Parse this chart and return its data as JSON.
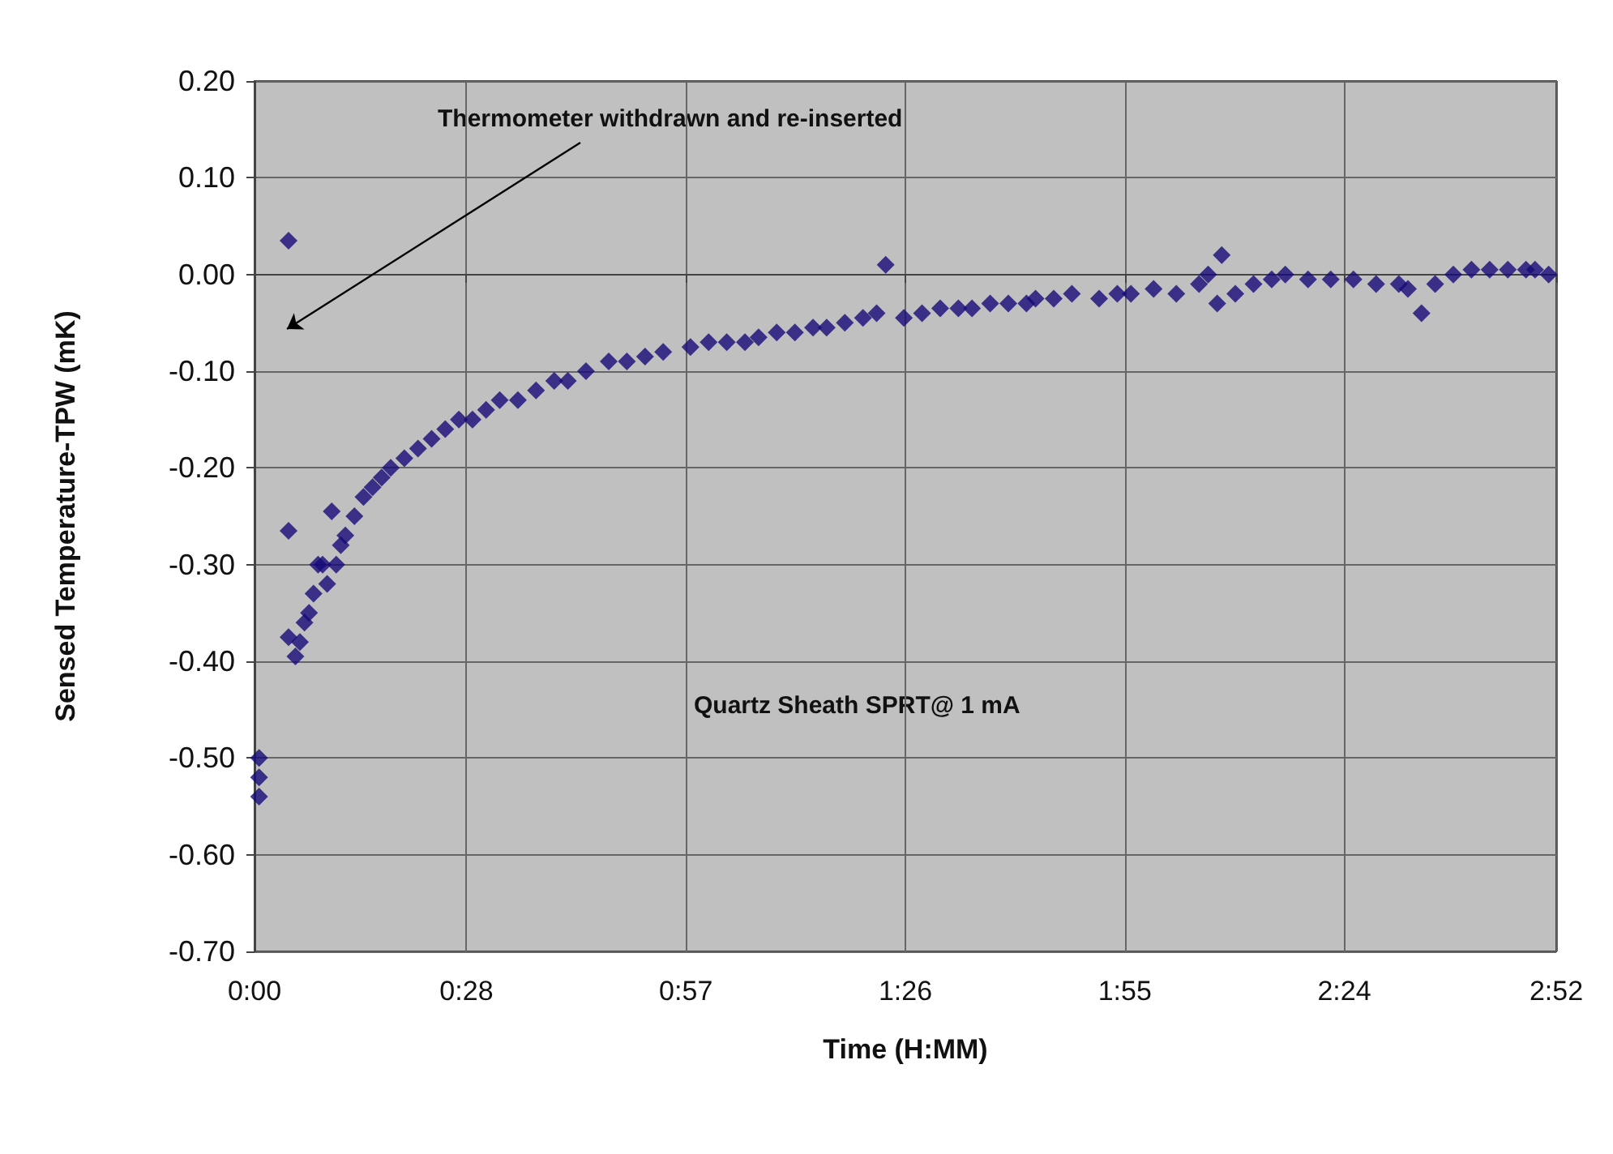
{
  "chart_data": {
    "type": "scatter",
    "xlabel": "Time (H:MM)",
    "ylabel": "Sensed Temperature-TPW (mK)",
    "annotations": [
      "Thermometer withdrawn and re-inserted",
      "Quartz Sheath SPRT@ 1 mA"
    ],
    "series": [
      {
        "color": "#160a78",
        "x": [
          0.01,
          0.01,
          0.01,
          0.075,
          0.075,
          0.075,
          0.09,
          0.1,
          0.11,
          0.12,
          0.13,
          0.14,
          0.15,
          0.16,
          0.17,
          0.18,
          0.19,
          0.2,
          0.22,
          0.24,
          0.26,
          0.28,
          0.3,
          0.33,
          0.36,
          0.39,
          0.42,
          0.45,
          0.48,
          0.51,
          0.54,
          0.58,
          0.62,
          0.66,
          0.69,
          0.73,
          0.78,
          0.82,
          0.86,
          0.9,
          0.96,
          1.0,
          1.04,
          1.08,
          1.11,
          1.15,
          1.19,
          1.23,
          1.26,
          1.3,
          1.34,
          1.37,
          1.39,
          1.43,
          1.47,
          1.51,
          1.55,
          1.58,
          1.62,
          1.66,
          1.7,
          1.72,
          1.76,
          1.8,
          1.86,
          1.9,
          1.93,
          1.98,
          2.03,
          2.08,
          2.1,
          2.12,
          2.13,
          2.16,
          2.2,
          2.24,
          2.27,
          2.32,
          2.37,
          2.42,
          2.47,
          2.52,
          2.54,
          2.57,
          2.6,
          2.64,
          2.68,
          2.72,
          2.76,
          2.8,
          2.82,
          2.85
        ],
        "values": [
          -0.5,
          -0.52,
          -0.54,
          0.035,
          -0.265,
          -0.375,
          -0.395,
          -0.38,
          -0.36,
          -0.35,
          -0.33,
          -0.3,
          -0.3,
          -0.32,
          -0.245,
          -0.3,
          -0.28,
          -0.27,
          -0.25,
          -0.23,
          -0.22,
          -0.21,
          -0.2,
          -0.19,
          -0.18,
          -0.17,
          -0.16,
          -0.15,
          -0.15,
          -0.14,
          -0.13,
          -0.13,
          -0.12,
          -0.11,
          -0.11,
          -0.1,
          -0.09,
          -0.09,
          -0.085,
          -0.08,
          -0.075,
          -0.07,
          -0.07,
          -0.07,
          -0.065,
          -0.06,
          -0.06,
          -0.055,
          -0.055,
          -0.05,
          -0.045,
          -0.04,
          0.01,
          -0.045,
          -0.04,
          -0.035,
          -0.035,
          -0.035,
          -0.03,
          -0.03,
          -0.03,
          -0.025,
          -0.025,
          -0.02,
          -0.025,
          -0.02,
          -0.02,
          -0.015,
          -0.02,
          -0.01,
          0.0,
          -0.03,
          0.02,
          -0.02,
          -0.01,
          -0.005,
          0.0,
          -0.005,
          -0.005,
          -0.005,
          -0.01,
          -0.01,
          -0.015,
          -0.04,
          -0.01,
          0.0,
          0.005,
          0.005,
          0.005,
          0.005,
          0.005,
          0.0
        ]
      }
    ],
    "xlim": [
      0,
      2.8667
    ],
    "xticks": [
      {
        "value": 0,
        "label": "0:00"
      },
      {
        "value": 0.4667,
        "label": "0:28"
      },
      {
        "value": 0.95,
        "label": "0:57"
      },
      {
        "value": 1.4333,
        "label": "1:26"
      },
      {
        "value": 1.9167,
        "label": "1:55"
      },
      {
        "value": 2.4,
        "label": "2:24"
      },
      {
        "value": 2.8667,
        "label": "2:52"
      }
    ],
    "ylim": [
      -0.7,
      0.2
    ],
    "yticks": [
      {
        "value": -0.7,
        "label": "-0.70"
      },
      {
        "value": -0.6,
        "label": "-0.60"
      },
      {
        "value": -0.5,
        "label": "-0.50"
      },
      {
        "value": -0.4,
        "label": "-0.40"
      },
      {
        "value": -0.3,
        "label": "-0.30"
      },
      {
        "value": -0.2,
        "label": "-0.20"
      },
      {
        "value": -0.1,
        "label": "-0.10"
      },
      {
        "value": 0,
        "label": "0.00"
      },
      {
        "value": 0.1,
        "label": "0.10"
      },
      {
        "value": 0.2,
        "label": "0.20"
      }
    ],
    "grid": true,
    "marker": "diamond"
  }
}
